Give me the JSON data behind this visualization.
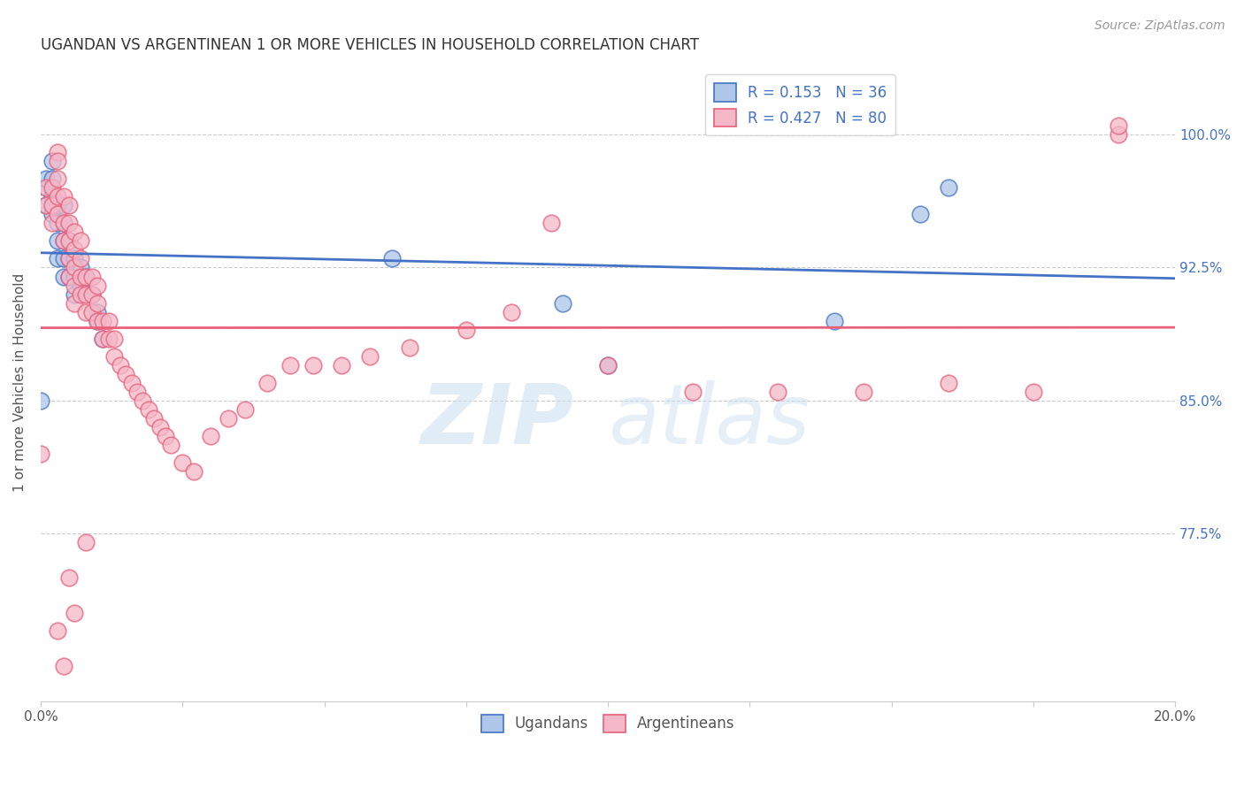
{
  "title": "UGANDAN VS ARGENTINEAN 1 OR MORE VEHICLES IN HOUSEHOLD CORRELATION CHART",
  "source": "Source: ZipAtlas.com",
  "ylabel": "1 or more Vehicles in Household",
  "ytick_labels": [
    "100.0%",
    "92.5%",
    "85.0%",
    "77.5%"
  ],
  "ytick_values": [
    1.0,
    0.925,
    0.85,
    0.775
  ],
  "xmin": 0.0,
  "xmax": 0.2,
  "ymin": 0.68,
  "ymax": 1.04,
  "ugandan_R": 0.153,
  "ugandan_N": 36,
  "argentinean_R": 0.427,
  "argentinean_N": 80,
  "ugandan_color": "#aec6e8",
  "argentinean_color": "#f4b8c8",
  "ugandan_line_color": "#4472c4",
  "argentinean_line_color": "#e8607a",
  "watermark_zip": "ZIP",
  "watermark_atlas": "atlas",
  "ugandan_x": [
    0.0,
    0.001,
    0.001,
    0.001,
    0.002,
    0.002,
    0.002,
    0.002,
    0.003,
    0.003,
    0.003,
    0.003,
    0.004,
    0.004,
    0.004,
    0.004,
    0.004,
    0.005,
    0.005,
    0.005,
    0.006,
    0.006,
    0.006,
    0.007,
    0.007,
    0.008,
    0.009,
    0.01,
    0.01,
    0.011,
    0.062,
    0.092,
    0.1,
    0.14,
    0.155,
    0.16
  ],
  "ugandan_y": [
    0.85,
    0.97,
    0.96,
    0.975,
    0.985,
    0.975,
    0.965,
    0.955,
    0.96,
    0.95,
    0.94,
    0.93,
    0.96,
    0.95,
    0.94,
    0.93,
    0.92,
    0.94,
    0.93,
    0.92,
    0.93,
    0.92,
    0.91,
    0.925,
    0.915,
    0.92,
    0.91,
    0.9,
    0.895,
    0.885,
    0.93,
    0.905,
    0.87,
    0.895,
    0.955,
    0.97
  ],
  "argentinean_x": [
    0.0,
    0.001,
    0.001,
    0.002,
    0.002,
    0.002,
    0.003,
    0.003,
    0.003,
    0.003,
    0.003,
    0.004,
    0.004,
    0.004,
    0.005,
    0.005,
    0.005,
    0.005,
    0.005,
    0.006,
    0.006,
    0.006,
    0.006,
    0.006,
    0.007,
    0.007,
    0.007,
    0.007,
    0.008,
    0.008,
    0.008,
    0.009,
    0.009,
    0.009,
    0.01,
    0.01,
    0.01,
    0.011,
    0.011,
    0.012,
    0.012,
    0.013,
    0.013,
    0.014,
    0.015,
    0.016,
    0.017,
    0.018,
    0.019,
    0.02,
    0.021,
    0.022,
    0.023,
    0.025,
    0.027,
    0.03,
    0.033,
    0.036,
    0.04,
    0.044,
    0.048,
    0.053,
    0.058,
    0.065,
    0.075,
    0.083,
    0.09,
    0.1,
    0.115,
    0.13,
    0.145,
    0.16,
    0.175,
    0.19,
    0.008,
    0.004,
    0.006,
    0.005,
    0.003,
    0.19
  ],
  "argentinean_y": [
    0.82,
    0.96,
    0.97,
    0.97,
    0.96,
    0.95,
    0.99,
    0.985,
    0.975,
    0.965,
    0.955,
    0.965,
    0.95,
    0.94,
    0.96,
    0.95,
    0.94,
    0.93,
    0.92,
    0.945,
    0.935,
    0.925,
    0.915,
    0.905,
    0.94,
    0.93,
    0.92,
    0.91,
    0.92,
    0.91,
    0.9,
    0.92,
    0.91,
    0.9,
    0.915,
    0.905,
    0.895,
    0.895,
    0.885,
    0.895,
    0.885,
    0.885,
    0.875,
    0.87,
    0.865,
    0.86,
    0.855,
    0.85,
    0.845,
    0.84,
    0.835,
    0.83,
    0.825,
    0.815,
    0.81,
    0.83,
    0.84,
    0.845,
    0.86,
    0.87,
    0.87,
    0.87,
    0.875,
    0.88,
    0.89,
    0.9,
    0.95,
    0.87,
    0.855,
    0.855,
    0.855,
    0.86,
    0.855,
    1.0,
    0.77,
    0.7,
    0.73,
    0.75,
    0.72,
    1.005
  ]
}
